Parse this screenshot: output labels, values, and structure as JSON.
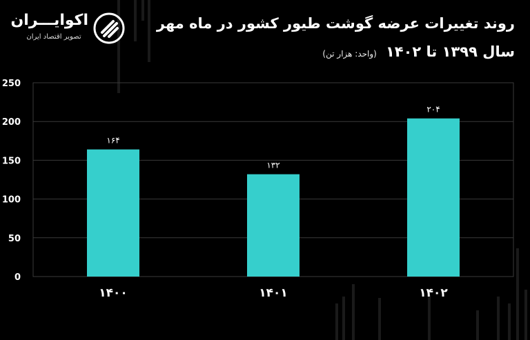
{
  "brand": {
    "name": "اکوایـــران",
    "tagline": "تصویر اقتصاد ایران",
    "icon": "ecoiran-logo-mark"
  },
  "header": {
    "title": "روند تغییرات عرضه گوشت طیور کشور در ماه مهر",
    "subtitle": "سال ۱۳۹۹ تا ۱۴۰۲",
    "unit_note": "(واحد: هزار تن)"
  },
  "colors": {
    "background": "#000000",
    "bar": "#36cfcc",
    "grid": "#3a3a3a",
    "text": "#ffffff"
  },
  "chart_data": {
    "type": "bar",
    "title": "روند تغییرات عرضه گوشت طیور کشور در ماه مهر",
    "categories": [
      "۱۴۰۰",
      "۱۴۰۱",
      "۱۴۰۲"
    ],
    "values": [
      164,
      132,
      204
    ],
    "value_labels": [
      "۱۶۴",
      "۱۳۲",
      "۲۰۴"
    ],
    "yticks": [
      0,
      50,
      100,
      150,
      200,
      250
    ],
    "ytick_labels": [
      "0",
      "50",
      "100",
      "150",
      "200",
      "250"
    ],
    "ylim": [
      0,
      250
    ],
    "grid": true,
    "legend": "none",
    "xlabel": "",
    "ylabel": ""
  }
}
